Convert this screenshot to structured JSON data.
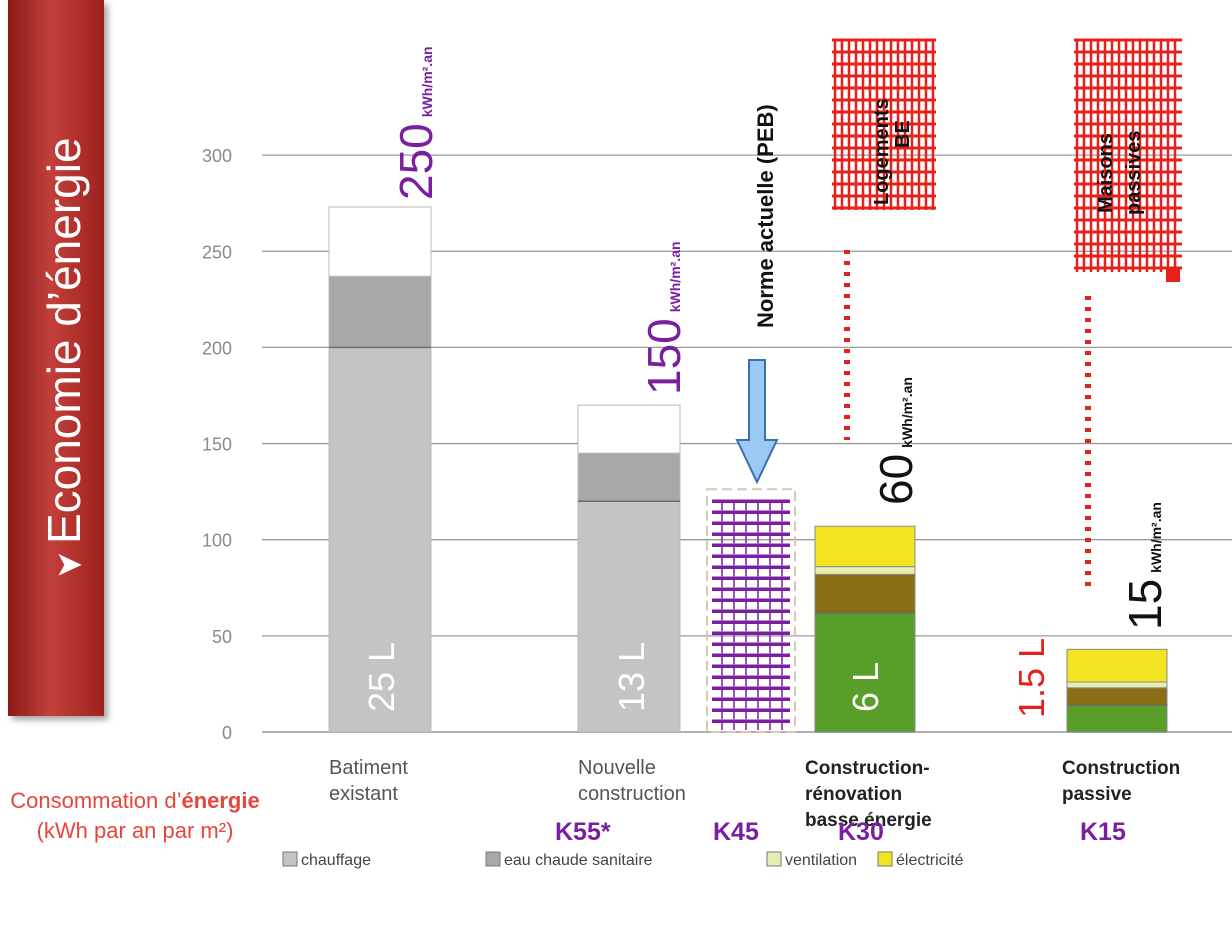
{
  "banner": {
    "title": "Economie d’énergie",
    "arrow_icon": "arrow-icon"
  },
  "caption": {
    "prefix": "Consommation d’",
    "strong": "énergie",
    "suffix": " (kWh par an par m²)"
  },
  "k_labels": [
    "K55*",
    "K45",
    "K30",
    "K15"
  ],
  "colors": {
    "chauffage": "#c4c4c4",
    "eau_chaude": "#a8a8a8",
    "existing_white": "#ffffff",
    "green": "#5a9e2a",
    "brown": "#8a6d14",
    "ventilation": "#e8eeb0",
    "electricite": "#f2e420",
    "purple": "#7b1fa2",
    "red": "#e8201c",
    "arrow_fill": "#9cc9f4",
    "arrow_stroke": "#3a6fb0"
  },
  "chart_data": {
    "type": "bar",
    "stacked": true,
    "ylim": [
      0,
      300
    ],
    "yticks": [
      0,
      50,
      100,
      150,
      200,
      250,
      300
    ],
    "grid": true,
    "categories": [
      "Batiment existant",
      "Nouvelle construction",
      "Construction-rénovation basse énergie",
      "Construction passive"
    ],
    "category_lines": [
      [
        "Batiment",
        "existant"
      ],
      [
        "Nouvelle",
        "construction"
      ],
      [
        "Construction-",
        "rénovation",
        "basse énergie"
      ],
      [
        "Construction",
        "passive"
      ]
    ],
    "series": [
      {
        "name": "chauffage",
        "values": [
          200,
          120,
          62,
          14
        ]
      },
      {
        "name": "eau chaude sanitaire",
        "values": [
          37,
          25,
          20,
          9
        ]
      },
      {
        "name": "ventilation",
        "values": [
          0,
          0,
          4,
          3
        ]
      },
      {
        "name": "électricité",
        "values": [
          36,
          25,
          21,
          17
        ]
      }
    ],
    "norm_band": {
      "label": "Norme actuelle (PEB)",
      "value": 120
    },
    "liter_labels": [
      "25 L",
      "13 L",
      "6 L",
      "1.5 L"
    ],
    "annotations": [
      {
        "value": "250",
        "unit": "kWh/m².an"
      },
      {
        "value": "150",
        "unit": "kWh/m².an"
      },
      {
        "value": "60",
        "unit": "kWh/m².an"
      },
      {
        "value": "15",
        "unit": "kWh/m².an"
      }
    ],
    "callouts": [
      "Logements BE",
      "Maisons passives"
    ],
    "legend": [
      "chauffage",
      "eau chaude sanitaire",
      "ventilation",
      "électricité"
    ],
    "legend_placement": "bottom"
  }
}
